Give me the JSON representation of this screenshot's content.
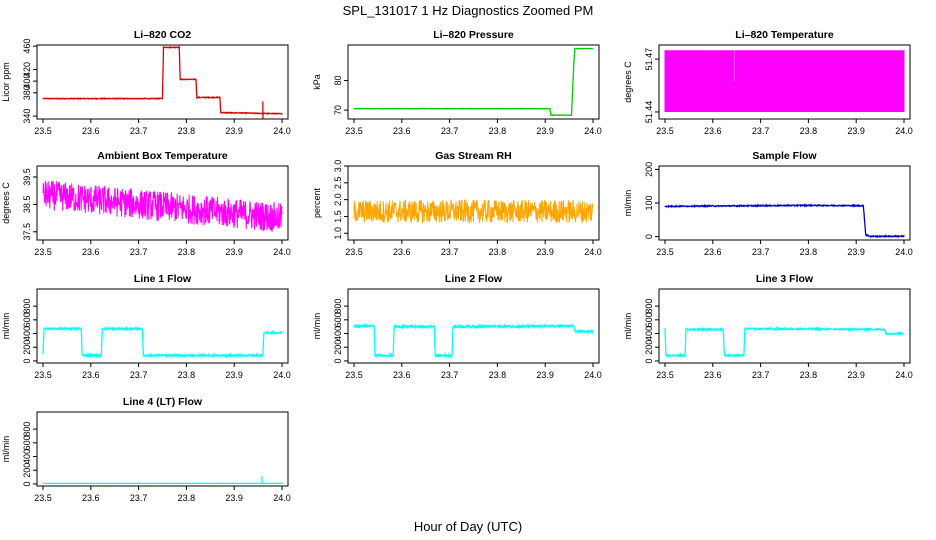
{
  "figure": {
    "title": "SPL_131017  1 Hz Diagnostics Zoomed PM",
    "xlabel": "Hour of Day (UTC)"
  },
  "chart_data": [
    {
      "id": "co2",
      "type": "line",
      "title": "Li–820 CO2",
      "ylabel": "Licor ppm",
      "color": "#dd0000",
      "xlim": [
        23.5,
        24.0
      ],
      "ylim": [
        335,
        462
      ],
      "xticks": [
        "23.5",
        "23.6",
        "23.7",
        "23.8",
        "23.9",
        "24.0"
      ],
      "yticks": [
        {
          "v": 340,
          "label": "340"
        },
        {
          "v": 380,
          "label": "380"
        },
        {
          "v": 400,
          "label": "400"
        },
        {
          "v": 420,
          "label": "420"
        },
        {
          "v": 460,
          "label": "460"
        }
      ],
      "noise": 0.6,
      "segments": [
        [
          23.5,
          370
        ],
        [
          23.75,
          370
        ],
        [
          23.752,
          458
        ],
        [
          23.785,
          458
        ],
        [
          23.787,
          403
        ],
        [
          23.82,
          403
        ],
        [
          23.822,
          372
        ],
        [
          23.87,
          372
        ],
        [
          23.872,
          346
        ],
        [
          24.0,
          344
        ]
      ],
      "spikes": [
        [
          23.96,
          365,
          336
        ]
      ]
    },
    {
      "id": "pressure",
      "type": "line",
      "title": "Li–820 Pressure",
      "ylabel": "kPa",
      "color": "#00cc00",
      "xlim": [
        23.5,
        24.0
      ],
      "ylim": [
        67,
        92
      ],
      "xticks": [
        "23.5",
        "23.6",
        "23.7",
        "23.8",
        "23.9",
        "24.0"
      ],
      "yticks": [
        {
          "v": 70,
          "label": "70"
        },
        {
          "v": 80,
          "label": "80"
        }
      ],
      "noise": 0.05,
      "segments": [
        [
          23.5,
          70.5
        ],
        [
          23.91,
          70.5
        ],
        [
          23.912,
          68.3
        ],
        [
          23.955,
          68.3
        ],
        [
          23.96,
          86
        ],
        [
          23.962,
          90.8
        ],
        [
          24.0,
          90.8
        ]
      ],
      "spikes": []
    },
    {
      "id": "temperature",
      "type": "dense",
      "title": "Li–820 Temperature",
      "ylabel": "degrees C",
      "color": "#ff00ff",
      "xlim": [
        23.5,
        24.0
      ],
      "ylim": [
        51.436,
        51.478
      ],
      "xticks": [
        "23.5",
        "23.6",
        "23.7",
        "23.8",
        "23.9",
        "24.0"
      ],
      "yticks": [
        {
          "v": 51.44,
          "label": "51.44"
        },
        {
          "v": 51.47,
          "label": "51.47"
        }
      ],
      "low": 51.44,
      "high": 51.475,
      "density": 0.9
    },
    {
      "id": "ambient",
      "type": "noisy",
      "title": "Ambient Box Temperature",
      "ylabel": "degrees C",
      "color": "#ff00ff",
      "xlim": [
        23.5,
        24.0
      ],
      "ylim": [
        37.2,
        39.9
      ],
      "xticks": [
        "23.5",
        "23.6",
        "23.7",
        "23.8",
        "23.9",
        "24.0"
      ],
      "yticks": [
        {
          "v": 37.5,
          "label": "37.5"
        },
        {
          "v": 38.5,
          "label": "38.5"
        },
        {
          "v": 39.5,
          "label": "39.5"
        }
      ],
      "trend": [
        [
          23.5,
          38.85
        ],
        [
          24.0,
          38.0
        ]
      ],
      "spread": 0.55
    },
    {
      "id": "rh",
      "type": "noisy",
      "title": "Gas Stream RH",
      "ylabel": "percent",
      "color": "#ffa500",
      "xlim": [
        23.5,
        24.0
      ],
      "ylim": [
        0.8,
        3.0
      ],
      "xticks": [
        "23.5",
        "23.6",
        "23.7",
        "23.8",
        "23.9",
        "24.0"
      ],
      "yticks": [
        {
          "v": 1.0,
          "label": "1.0"
        },
        {
          "v": 1.5,
          "label": "1.5"
        },
        {
          "v": 2.0,
          "label": "2.0"
        },
        {
          "v": 2.5,
          "label": "2.5"
        },
        {
          "v": 3.0,
          "label": "3.0"
        }
      ],
      "trend": [
        [
          23.5,
          1.65
        ],
        [
          24.0,
          1.65
        ]
      ],
      "spread": 0.35
    },
    {
      "id": "sample",
      "type": "line",
      "title": "Sample Flow",
      "ylabel": "ml/min",
      "color": "#0000cc",
      "xlim": [
        23.5,
        24.0
      ],
      "ylim": [
        -10,
        210
      ],
      "xticks": [
        "23.5",
        "23.6",
        "23.7",
        "23.8",
        "23.9",
        "24.0"
      ],
      "yticks": [
        {
          "v": 0,
          "label": "0"
        },
        {
          "v": 100,
          "label": "100"
        },
        {
          "v": 200,
          "label": "200"
        }
      ],
      "noise": 1.5,
      "segments": [
        [
          23.5,
          90
        ],
        [
          23.8,
          93
        ],
        [
          23.915,
          92
        ],
        [
          23.92,
          5
        ],
        [
          23.93,
          1
        ],
        [
          24.0,
          1
        ]
      ],
      "spikes": []
    },
    {
      "id": "line1",
      "type": "line",
      "title": "Line 1 Flow",
      "ylabel": "ml/min",
      "color": "#00ffff",
      "xlim": [
        23.5,
        24.0
      ],
      "ylim": [
        -30,
        1050
      ],
      "xticks": [
        "23.5",
        "23.6",
        "23.7",
        "23.8",
        "23.9",
        "24.0"
      ],
      "yticks": [
        {
          "v": 0,
          "label": "0"
        },
        {
          "v": 200,
          "label": "200"
        },
        {
          "v": 400,
          "label": "400"
        },
        {
          "v": 600,
          "label": "600"
        },
        {
          "v": 800,
          "label": "800"
        }
      ],
      "noise": 12,
      "segments": [
        [
          23.5,
          100
        ],
        [
          23.502,
          470
        ],
        [
          23.58,
          470
        ],
        [
          23.582,
          80
        ],
        [
          23.622,
          80
        ],
        [
          23.624,
          470
        ],
        [
          23.708,
          470
        ],
        [
          23.71,
          80
        ],
        [
          23.96,
          80
        ],
        [
          23.962,
          410
        ],
        [
          24.0,
          410
        ]
      ],
      "spikes": []
    },
    {
      "id": "line2",
      "type": "line",
      "title": "Line 2 Flow",
      "ylabel": "ml/min",
      "color": "#00ffff",
      "xlim": [
        23.5,
        24.0
      ],
      "ylim": [
        -30,
        1050
      ],
      "xticks": [
        "23.5",
        "23.6",
        "23.7",
        "23.8",
        "23.9",
        "24.0"
      ],
      "yticks": [
        {
          "v": 0,
          "label": "0"
        },
        {
          "v": 200,
          "label": "200"
        },
        {
          "v": 400,
          "label": "400"
        },
        {
          "v": 600,
          "label": "600"
        },
        {
          "v": 800,
          "label": "800"
        }
      ],
      "noise": 14,
      "segments": [
        [
          23.5,
          510
        ],
        [
          23.542,
          510
        ],
        [
          23.544,
          80
        ],
        [
          23.582,
          80
        ],
        [
          23.584,
          500
        ],
        [
          23.668,
          500
        ],
        [
          23.67,
          80
        ],
        [
          23.705,
          80
        ],
        [
          23.707,
          500
        ],
        [
          23.96,
          510
        ],
        [
          23.962,
          430
        ],
        [
          24.0,
          430
        ]
      ],
      "spikes": []
    },
    {
      "id": "line3",
      "type": "line",
      "title": "Line 3 Flow",
      "ylabel": "ml/min",
      "color": "#00ffff",
      "xlim": [
        23.5,
        24.0
      ],
      "ylim": [
        -30,
        1050
      ],
      "xticks": [
        "23.5",
        "23.6",
        "23.7",
        "23.8",
        "23.9",
        "24.0"
      ],
      "yticks": [
        {
          "v": 0,
          "label": "0"
        },
        {
          "v": 200,
          "label": "200"
        },
        {
          "v": 400,
          "label": "400"
        },
        {
          "v": 600,
          "label": "600"
        },
        {
          "v": 800,
          "label": "800"
        }
      ],
      "noise": 10,
      "segments": [
        [
          23.5,
          480
        ],
        [
          23.502,
          80
        ],
        [
          23.542,
          80
        ],
        [
          23.544,
          460
        ],
        [
          23.622,
          460
        ],
        [
          23.624,
          80
        ],
        [
          23.665,
          80
        ],
        [
          23.667,
          470
        ],
        [
          23.96,
          460
        ],
        [
          23.962,
          400
        ],
        [
          24.0,
          400
        ]
      ],
      "spikes": []
    },
    {
      "id": "line4",
      "type": "line",
      "title": "Line 4 (LT) Flow",
      "ylabel": "ml/min",
      "color": "#00ffff",
      "xlim": [
        23.5,
        24.0
      ],
      "ylim": [
        -30,
        1050
      ],
      "xticks": [
        "23.5",
        "23.6",
        "23.7",
        "23.8",
        "23.9",
        "24.0"
      ],
      "yticks": [
        {
          "v": 0,
          "label": "0"
        },
        {
          "v": 200,
          "label": "200"
        },
        {
          "v": 400,
          "label": "400"
        },
        {
          "v": 600,
          "label": "600"
        },
        {
          "v": 800,
          "label": "800"
        }
      ],
      "noise": 1,
      "segments": [
        [
          23.5,
          8
        ],
        [
          24.0,
          8
        ]
      ],
      "spikes": [
        [
          23.958,
          110,
          5
        ]
      ]
    }
  ]
}
